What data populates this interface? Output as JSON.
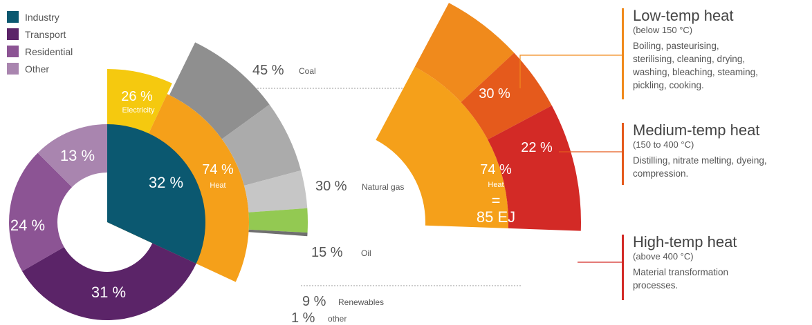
{
  "legend": [
    {
      "label": "Industry",
      "color": "#0b5870"
    },
    {
      "label": "Transport",
      "color": "#5b2468"
    },
    {
      "label": "Residential",
      "color": "#8c5494"
    },
    {
      "label": "Other",
      "color": "#a985af"
    }
  ],
  "inner_ring": [
    {
      "sector": "Industry",
      "value": "32 %",
      "color": "#0b5870"
    },
    {
      "sector": "Transport",
      "value": "31 %",
      "color": "#5b2468"
    },
    {
      "sector": "Residential",
      "value": "24 %",
      "color": "#8c5494"
    },
    {
      "sector": "Other",
      "value": "13 %",
      "color": "#a985af"
    }
  ],
  "industry_split": [
    {
      "value": "26 %",
      "label": "Electricity",
      "color": "#f5c90f"
    },
    {
      "value": "74 %",
      "label": "Heat",
      "color": "#f5a01a"
    }
  ],
  "heat_sources": [
    {
      "value": "45 %",
      "label": "Coal",
      "color": "#8f8f8f"
    },
    {
      "value": "30 %",
      "label": "Natural gas",
      "color": "#ababab"
    },
    {
      "value": "15 %",
      "label": "Oil",
      "color": "#c6c6c6"
    },
    {
      "value": "9 %",
      "label": "Renewables",
      "color": "#93c952"
    },
    {
      "value": "1 %",
      "label": "other",
      "color": "#6f6f6f"
    }
  ],
  "heat_total": {
    "value": "74 %",
    "label": "Heat",
    "equals": "=",
    "energy": "85 EJ"
  },
  "temperature_split": [
    {
      "value": "30 %",
      "color": "#f08a1c"
    },
    {
      "value": "22 %",
      "color": "#e55a1c"
    },
    {
      "value": "48 %",
      "color": "#d32a26"
    }
  ],
  "categories": [
    {
      "title": "Low-temp heat",
      "range": "(below 150 °C)",
      "desc": [
        "Boiling, pasteurising,",
        "sterilising, cleaning, drying,",
        "washing, bleaching, steaming,",
        "pickling, cooking."
      ],
      "color": "#f08a1c"
    },
    {
      "title": "Medium-temp heat",
      "range": "(150 to 400 °C)",
      "desc": [
        "Distilling, nitrate melting, dyeing,",
        "compression."
      ],
      "color": "#e55a1c"
    },
    {
      "title": "High-temp heat",
      "range": "(above 400 °C)",
      "desc": [
        "Material transformation",
        "processes."
      ],
      "color": "#d32a26"
    }
  ]
}
